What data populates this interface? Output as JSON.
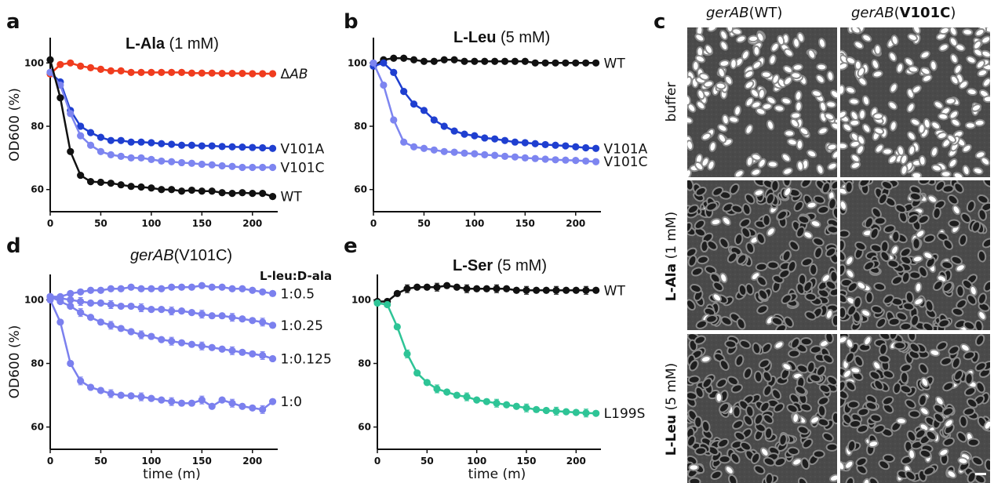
{
  "panels": {
    "a": {
      "letter": "a",
      "title_bold": "L-Ala",
      "title_rest": " (1 mM)"
    },
    "b": {
      "letter": "b",
      "title_bold": "L-Leu",
      "title_rest": " (5 mM)"
    },
    "c": {
      "letter": "c"
    },
    "d": {
      "letter": "d",
      "title_italic": "gerAB",
      "title_rest": "(V101C)",
      "legend_header": "L-leu:D-ala"
    },
    "e": {
      "letter": "e",
      "title_bold": "L-Ser",
      "title_rest": " (5 mM)"
    }
  },
  "colors": {
    "WT": "#111111",
    "deltaAB": "#f03c1e",
    "V101A": "#1f3fd0",
    "V101C": "#7d85f0",
    "L199S": "#2ec496",
    "ratio": "#7b80ee"
  },
  "images": {
    "col_headers": [
      {
        "italic": "gerAB",
        "rest": "(WT)"
      },
      {
        "italic": "gerAB",
        "bold": "V101C",
        "pre": "(",
        "post": ")"
      }
    ],
    "row_headers": [
      {
        "bold": "",
        "rest": "buffer"
      },
      {
        "bold": "L-Ala",
        "rest": " (1 mM)"
      },
      {
        "bold": "L-Leu",
        "rest": " (5 mM)"
      }
    ]
  },
  "chart_data": [
    {
      "panel": "a",
      "type": "line",
      "title": "L-Ala (1 mM)",
      "ylabel": "OD600 (%)",
      "xlabel": "",
      "xlim": [
        0,
        225
      ],
      "ylim": [
        53,
        108
      ],
      "xticks": [
        "0",
        "50",
        "100",
        "150",
        "200"
      ],
      "yticks": [
        "60",
        "80",
        "100"
      ],
      "x": [
        0,
        10,
        20,
        30,
        40,
        50,
        60,
        70,
        80,
        90,
        100,
        110,
        120,
        130,
        140,
        150,
        160,
        170,
        180,
        190,
        200,
        210,
        220
      ],
      "series": [
        {
          "name": "ΔAB",
          "values": [
            96.5,
            99.5,
            100,
            99.0,
            98.5,
            98,
            97.5,
            97.5,
            97,
            97,
            97,
            97,
            97,
            97,
            96.8,
            96.8,
            96.8,
            96.7,
            96.7,
            96.7,
            96.6,
            96.6,
            96.6
          ]
        },
        {
          "name": "V101A",
          "values": [
            97,
            94,
            85,
            80,
            78,
            76.5,
            75.5,
            75.5,
            75,
            75,
            74.8,
            74.5,
            74.3,
            74,
            74,
            73.8,
            73.8,
            73.6,
            73.5,
            73.4,
            73.3,
            73.2,
            73
          ]
        },
        {
          "name": "V101C",
          "values": [
            97,
            93,
            84,
            77,
            74,
            72,
            71,
            70.5,
            70,
            70,
            69.5,
            69,
            68.8,
            68.5,
            68.3,
            68,
            67.8,
            67.5,
            67.3,
            67,
            67,
            67,
            67
          ]
        },
        {
          "name": "WT",
          "values": [
            101,
            89,
            72,
            64.5,
            62.5,
            62.3,
            62,
            61.5,
            61,
            60.8,
            60.5,
            60,
            60,
            59.5,
            59.8,
            59.5,
            59.5,
            59,
            58.8,
            59,
            58.8,
            58.8,
            57.8
          ]
        }
      ]
    },
    {
      "panel": "b",
      "type": "line",
      "title": "L-Leu (5 mM)",
      "ylabel": "",
      "xlabel": "",
      "xlim": [
        0,
        225
      ],
      "ylim": [
        53,
        108
      ],
      "xticks": [
        "0",
        "50",
        "100",
        "150",
        "200"
      ],
      "yticks": [
        "60",
        "80",
        "100"
      ],
      "x": [
        0,
        10,
        20,
        30,
        40,
        50,
        60,
        70,
        80,
        90,
        100,
        110,
        120,
        130,
        140,
        150,
        160,
        170,
        180,
        190,
        200,
        210,
        220
      ],
      "series": [
        {
          "name": "WT",
          "values": [
            99,
            101,
            101.5,
            101.5,
            101,
            100.5,
            100.5,
            101,
            101,
            100.5,
            100.5,
            100.5,
            100.5,
            100.5,
            100.5,
            100.5,
            100,
            100,
            100,
            100,
            100,
            100,
            100
          ]
        },
        {
          "name": "V101A",
          "values": [
            99,
            100,
            97,
            91,
            87,
            85,
            82,
            80,
            78.5,
            77.5,
            77,
            76.3,
            76,
            75.5,
            75,
            74.8,
            74.5,
            74.2,
            74,
            73.8,
            73.5,
            73.2,
            73
          ]
        },
        {
          "name": "V101C",
          "values": [
            100,
            93,
            82,
            75,
            73.5,
            73,
            72.5,
            72,
            71.8,
            71.5,
            71.3,
            71,
            70.8,
            70.5,
            70.3,
            70,
            69.8,
            69.6,
            69.4,
            69.3,
            69.2,
            69,
            68.8
          ]
        }
      ]
    },
    {
      "panel": "d",
      "type": "line",
      "title": "gerAB(V101C)",
      "ylabel": "OD600 (%)",
      "xlabel": "time (m)",
      "xlim": [
        0,
        225
      ],
      "ylim": [
        53,
        108
      ],
      "xticks": [
        "0",
        "50",
        "100",
        "150",
        "200"
      ],
      "yticks": [
        "60",
        "80",
        "100"
      ],
      "x": [
        0,
        10,
        20,
        30,
        40,
        50,
        60,
        70,
        80,
        90,
        100,
        110,
        120,
        130,
        140,
        150,
        160,
        170,
        180,
        190,
        200,
        210,
        220
      ],
      "series": [
        {
          "name": "1:0.5",
          "values": [
            101,
            101,
            102,
            102.5,
            103,
            103,
            103.5,
            103.5,
            104,
            103.5,
            103.5,
            103.5,
            104,
            104,
            104,
            104.5,
            104,
            104,
            103.5,
            103.5,
            103,
            102.5,
            102
          ]
        },
        {
          "name": "1:0.25",
          "values": [
            101,
            100.5,
            100,
            99.5,
            99,
            99,
            98.5,
            98,
            98,
            97.5,
            97,
            97,
            96.5,
            96.5,
            96,
            95.5,
            95,
            95,
            94.5,
            94,
            93.5,
            93,
            92
          ]
        },
        {
          "name": "1:0.125",
          "values": [
            101,
            99.5,
            98,
            96,
            94.5,
            93,
            92,
            91,
            90,
            89,
            88.5,
            87.5,
            87,
            86.5,
            86,
            85.5,
            85,
            84.5,
            84,
            83.5,
            83,
            82.5,
            81.5
          ]
        },
        {
          "name": "1:0",
          "values": [
            100,
            93,
            80,
            74.5,
            72.5,
            71.5,
            70.5,
            70,
            69.8,
            69.5,
            69,
            68.5,
            68,
            67.5,
            67.5,
            68.5,
            66.5,
            68.5,
            67.5,
            66.5,
            66,
            65.5,
            68
          ]
        }
      ]
    },
    {
      "panel": "e",
      "type": "line",
      "title": "L-Ser (5 mM)",
      "ylabel": "",
      "xlabel": "time (m)",
      "xlim": [
        0,
        225
      ],
      "ylim": [
        53,
        108
      ],
      "xticks": [
        "0",
        "50",
        "100",
        "150",
        "200"
      ],
      "yticks": [
        "60",
        "80",
        "100"
      ],
      "x": [
        0,
        10,
        20,
        30,
        40,
        50,
        60,
        70,
        80,
        90,
        100,
        110,
        120,
        130,
        140,
        150,
        160,
        170,
        180,
        190,
        200,
        210,
        220
      ],
      "series": [
        {
          "name": "WT",
          "values": [
            99.5,
            99.5,
            102,
            103.5,
            104,
            104,
            104,
            104.5,
            104,
            103.5,
            103.5,
            103.5,
            103.5,
            103.5,
            103,
            103,
            103,
            103,
            103,
            103,
            103,
            103,
            103
          ]
        },
        {
          "name": "L199S",
          "values": [
            99,
            98.5,
            91.5,
            83,
            77,
            74,
            72,
            71,
            70,
            69.5,
            68.5,
            68,
            67.5,
            67,
            66.5,
            66,
            65.5,
            65.2,
            65,
            64.8,
            64.6,
            64.4,
            64.3
          ]
        }
      ]
    }
  ]
}
